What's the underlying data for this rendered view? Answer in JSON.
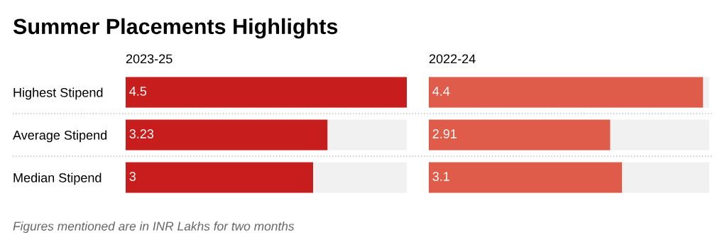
{
  "chart_data": [
    {
      "type": "bar",
      "orientation": "horizontal",
      "title": "Summer Placements Highlights",
      "subtitle": "2023-25",
      "categories": [
        "Highest Stipend",
        "Average Stipend",
        "Median Stipend"
      ],
      "values": [
        4.5,
        3.23,
        3
      ],
      "color": "#c71e1d",
      "xlim": [
        0,
        4.5
      ],
      "data_labels": true,
      "tick_labels": "y",
      "annotations": [
        "Figures mentioned are in INR Lakhs for two months"
      ]
    },
    {
      "type": "bar",
      "orientation": "horizontal",
      "subtitle": "2022-24",
      "categories": [
        null,
        null,
        null
      ],
      "values": [
        4.4,
        2.91,
        3.1
      ],
      "color": "#df5b4a",
      "xlim": [
        0,
        4.5
      ],
      "data_labels": true,
      "tick_labels": false
    }
  ]
}
